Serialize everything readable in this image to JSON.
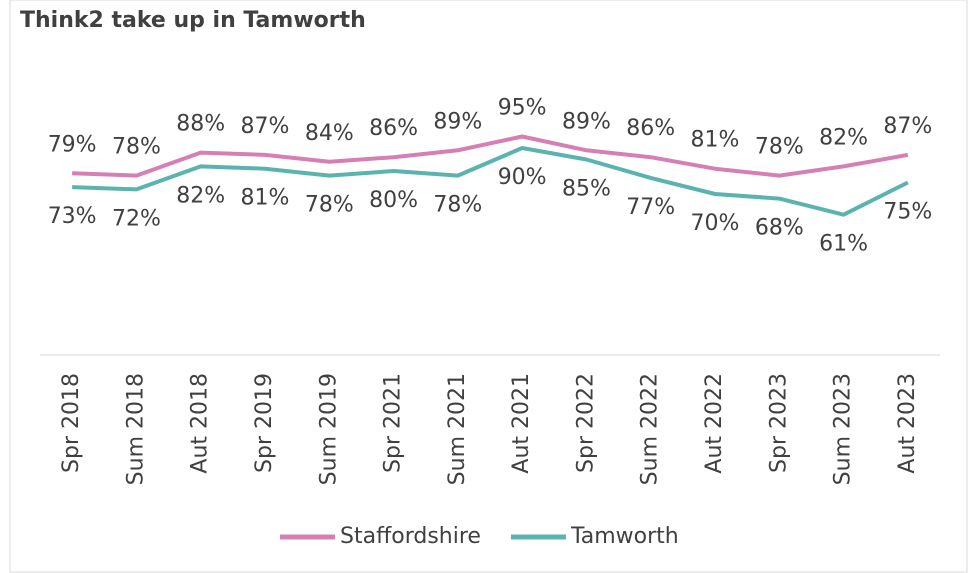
{
  "chart_data": {
    "type": "line",
    "title": "Think2 take up in Tamworth",
    "categories": [
      "Spr 2018",
      "Sum 2018",
      "Aut 2018",
      "Spr 2019",
      "Sum 2019",
      "Spr 2021",
      "Sum 2021",
      "Aut 2021",
      "Spr 2022",
      "Sum 2022",
      "Aut 2022",
      "Spr 2023",
      "Sum 2023",
      "Aut 2023"
    ],
    "series": [
      {
        "name": "Staffordshire",
        "color": "#d67fb4",
        "values": [
          79,
          78,
          88,
          87,
          84,
          86,
          89,
          95,
          89,
          86,
          81,
          78,
          82,
          87
        ],
        "value_labels": [
          "79%",
          "78%",
          "88%",
          "87%",
          "84%",
          "86%",
          "89%",
          "95%",
          "89%",
          "86%",
          "81%",
          "78%",
          "82%",
          "87%"
        ]
      },
      {
        "name": "Tamworth",
        "color": "#5bb3b0",
        "values": [
          73,
          72,
          82,
          81,
          78,
          80,
          78,
          90,
          85,
          77,
          70,
          68,
          61,
          75
        ],
        "value_labels": [
          "73%",
          "72%",
          "82%",
          "81%",
          "78%",
          "80%",
          "78%",
          "90%",
          "85%",
          "77%",
          "70%",
          "68%",
          "61%",
          "75%"
        ]
      }
    ],
    "ylim": [
      0,
      100
    ],
    "legend": "bottom"
  }
}
